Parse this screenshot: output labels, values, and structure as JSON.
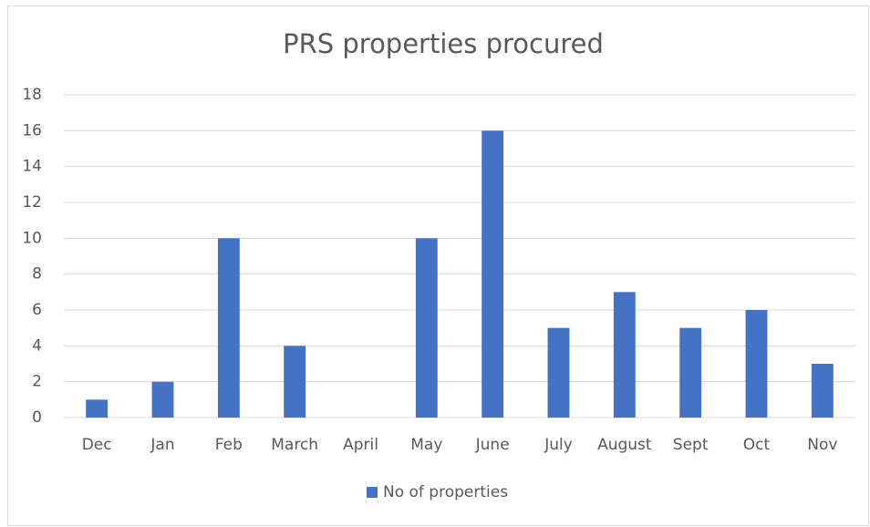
{
  "chart_data": {
    "type": "bar",
    "title": "PRS properties procured",
    "categories": [
      "Dec",
      "Jan",
      "Feb",
      "March",
      "April",
      "May",
      "June",
      "July",
      "August",
      "Sept",
      "Oct",
      "Nov"
    ],
    "series": [
      {
        "name": "No of properties",
        "color": "#4472c4",
        "values": [
          1,
          2,
          10,
          4,
          0,
          10,
          16,
          5,
          7,
          5,
          6,
          3
        ]
      }
    ],
    "ylim": [
      0,
      18
    ],
    "yticks": [
      0,
      2,
      4,
      6,
      8,
      10,
      12,
      14,
      16,
      18
    ],
    "grid": true,
    "legend": "bottom"
  }
}
